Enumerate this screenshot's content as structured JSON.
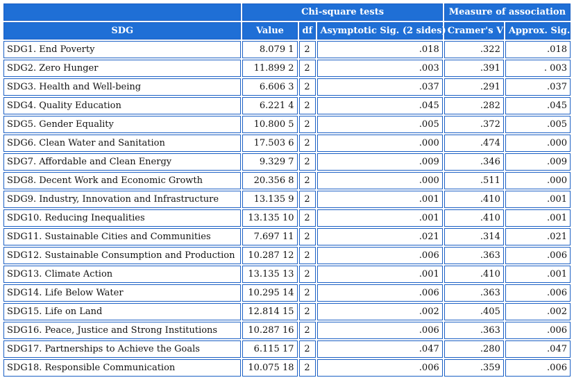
{
  "header": {
    "groups": [
      "Chi-square tests",
      "Measure of association"
    ],
    "columns": [
      "SDG",
      "Value",
      "df",
      "Asymptotic Sig. (2 sides)",
      "Cramer's V",
      "Approx. Sig."
    ]
  },
  "table": {
    "rows": [
      [
        "SDG1. End Poverty",
        "8.079 1",
        "2",
        ".018",
        ".322",
        ".018"
      ],
      [
        "SDG2. Zero Hunger",
        "11.899 2",
        "2",
        ".003",
        ".391",
        ". 003"
      ],
      [
        "SDG3. Health and Well-being",
        "6.606 3",
        "2",
        ".037",
        ".291",
        ".037"
      ],
      [
        "SDG4. Quality Education",
        "6.221 4",
        "2",
        ".045",
        ".282",
        ".045"
      ],
      [
        "SDG5. Gender Equality",
        "10.800 5",
        "2",
        ".005",
        ".372",
        ".005"
      ],
      [
        "SDG6. Clean Water and Sanitation",
        "17.503 6",
        "2",
        ".000",
        ".474",
        ".000"
      ],
      [
        "SDG7. Affordable and Clean Energy",
        "9.329 7",
        "2",
        ".009",
        ".346",
        ".009"
      ],
      [
        "SDG8. Decent Work and Economic Growth",
        "20.356 8",
        "2",
        ".000",
        ".511",
        ".000"
      ],
      [
        "SDG9. Industry, Innovation and Infrastructure",
        "13.135 9",
        "2",
        ".001",
        ".410",
        ".001"
      ],
      [
        "SDG10. Reducing Inequalities",
        "13.135 10",
        "2",
        ".001",
        ".410",
        ".001"
      ],
      [
        "SDG11. Sustainable Cities and Communities",
        "7.697 11",
        "2",
        ".021",
        ".314",
        ".021"
      ],
      [
        "SDG12. Sustainable Consumption and Production",
        "10.287 12",
        "2",
        ".006",
        ".363",
        ".006"
      ],
      [
        "SDG13. Climate Action",
        "13.135 13",
        "2",
        ".001",
        ".410",
        ".001"
      ],
      [
        "SDG14. Life Below Water",
        "10.295 14",
        "2",
        ".006",
        ".363",
        ".006"
      ],
      [
        "SDG15. Life on Land",
        "12.814 15",
        "2",
        ".002",
        ".405",
        ".002"
      ],
      [
        "SDG16. Peace, Justice and Strong Institutions",
        "10.287 16",
        "2",
        ".006",
        ".363",
        ".006"
      ],
      [
        "SDG17. Partnerships to Achieve the Goals",
        "6.115 17",
        "2",
        ".047",
        ".280",
        ".047"
      ],
      [
        "SDG18. Responsible Communication",
        "10.075 18",
        "2",
        ".006",
        ".359",
        ".006"
      ]
    ]
  }
}
